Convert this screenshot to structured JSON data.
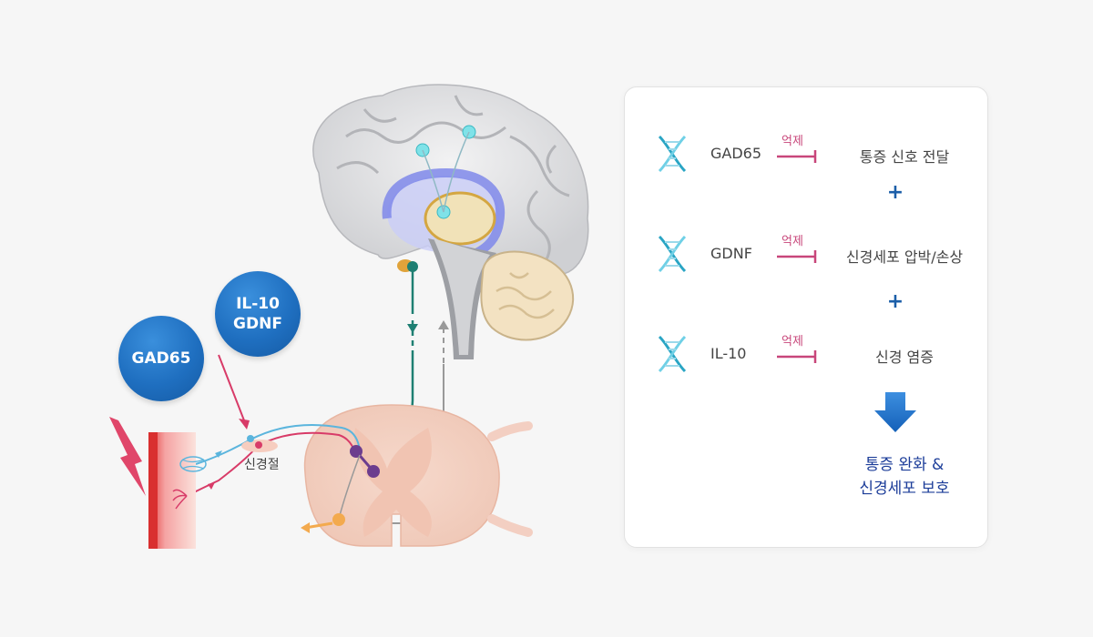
{
  "bubbles": {
    "gad65": "GAD65",
    "il10_line1": "IL-10",
    "il10_line2": "GDNF"
  },
  "ganglion_label": "신경절",
  "panel": {
    "rows": [
      {
        "gene": "GAD65",
        "inhibit": "억제",
        "effect": "통증 신호 전달"
      },
      {
        "gene": "GDNF",
        "inhibit": "억제",
        "effect": "신경세포 압박/손상"
      },
      {
        "gene": "IL-10",
        "inhibit": "억제",
        "effect": "신경 염증"
      }
    ],
    "plus": "+",
    "result_line1": "통증 완화 &",
    "result_line2": "신경세포 보호"
  },
  "colors": {
    "bubble_blue": "#1f6fc0",
    "inhibit_pink": "#c8467a",
    "plus_blue": "#1b5ea8",
    "result_navy": "#1c3d99",
    "dna_teal": "#2aa5c4"
  }
}
